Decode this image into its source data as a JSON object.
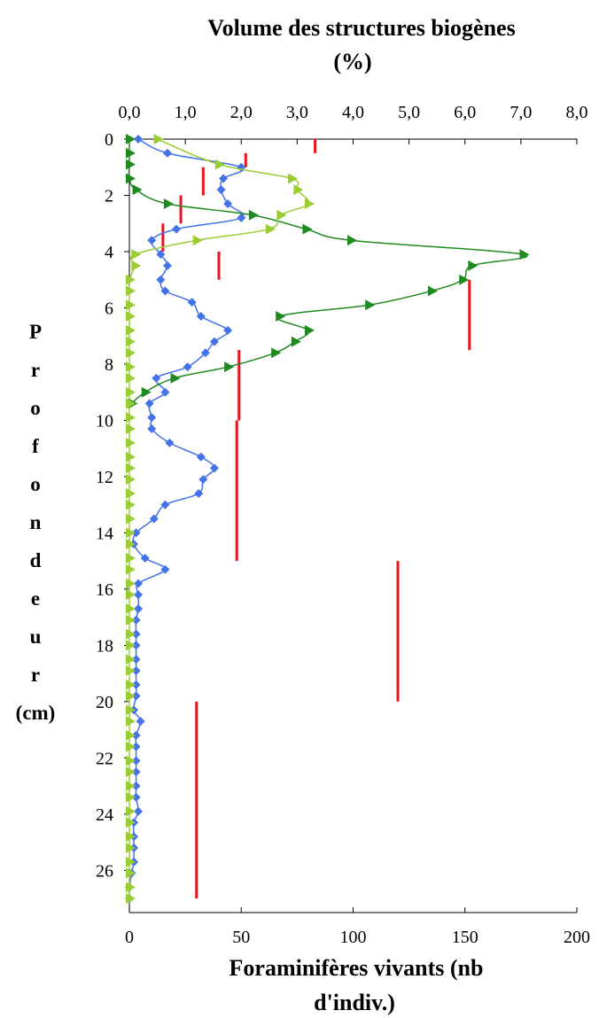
{
  "chart_data": {
    "type": "line",
    "title_top": [
      "Volume des structures biogènes",
      "(%)"
    ],
    "title_bottom": [
      "Foraminifères vivants (nb",
      "d'indiv.)"
    ],
    "ylabel_letters": [
      "P",
      "r",
      "o",
      "f",
      "o",
      "n",
      "d",
      "e",
      "u",
      "r"
    ],
    "ylabel_unit": "(cm)",
    "y_axis": {
      "min": 0,
      "max": 27.5,
      "inverted": true,
      "ticks": [
        0,
        2,
        4,
        6,
        8,
        10,
        12,
        14,
        16,
        18,
        20,
        22,
        24,
        26
      ]
    },
    "top_axis": {
      "min": 0,
      "max": 8,
      "tick_labels": [
        "0,0",
        "1,0",
        "2,0",
        "3,0",
        "4,0",
        "5,0",
        "6,0",
        "7,0",
        "8,0"
      ]
    },
    "bottom_axis": {
      "min": 0,
      "max": 200,
      "tick_labels": [
        "0",
        "50",
        "100",
        "150",
        "200"
      ]
    },
    "grid": false,
    "series": [
      {
        "axis": "bottom",
        "color": "#4472e8",
        "marker": "diamond",
        "points": [
          [
            4,
            0
          ],
          [
            17,
            0.5
          ],
          [
            50,
            1
          ],
          [
            42,
            1.4
          ],
          [
            41,
            1.8
          ],
          [
            44,
            2.3
          ],
          [
            50,
            2.8
          ],
          [
            21,
            3.2
          ],
          [
            10,
            3.6
          ],
          [
            14,
            4.1
          ],
          [
            17,
            4.5
          ],
          [
            14,
            5
          ],
          [
            16,
            5.4
          ],
          [
            28,
            5.8
          ],
          [
            32,
            6.3
          ],
          [
            44,
            6.8
          ],
          [
            38,
            7.2
          ],
          [
            34,
            7.6
          ],
          [
            26,
            8.1
          ],
          [
            12,
            8.5
          ],
          [
            16,
            9
          ],
          [
            9,
            9.4
          ],
          [
            10,
            9.9
          ],
          [
            10,
            10.3
          ],
          [
            18,
            10.8
          ],
          [
            32,
            11.3
          ],
          [
            38,
            11.7
          ],
          [
            33,
            12.1
          ],
          [
            31,
            12.6
          ],
          [
            16,
            13
          ],
          [
            11,
            13.5
          ],
          [
            3,
            14
          ],
          [
            2,
            14.4
          ],
          [
            7,
            14.9
          ],
          [
            16,
            15.3
          ],
          [
            4,
            15.8
          ],
          [
            4,
            16.2
          ],
          [
            4,
            16.7
          ],
          [
            3,
            17.1
          ],
          [
            3,
            17.6
          ],
          [
            3,
            18
          ],
          [
            3,
            18.5
          ],
          [
            3,
            18.9
          ],
          [
            3,
            19.4
          ],
          [
            3,
            19.8
          ],
          [
            2,
            20.3
          ],
          [
            5,
            20.7
          ],
          [
            3,
            21.2
          ],
          [
            3,
            21.6
          ],
          [
            3,
            22.1
          ],
          [
            3,
            22.5
          ],
          [
            3,
            23
          ],
          [
            3,
            23.4
          ],
          [
            4,
            23.9
          ],
          [
            2,
            24.3
          ],
          [
            2,
            24.8
          ],
          [
            2,
            25.2
          ],
          [
            2,
            25.7
          ],
          [
            1,
            26.1
          ],
          [
            0,
            26.6
          ],
          [
            0,
            27
          ]
        ]
      },
      {
        "axis": "bottom",
        "color": "#1f8a1f",
        "marker": "triangle-right",
        "points": [
          [
            0,
            0
          ],
          [
            0,
            0.5
          ],
          [
            0,
            0.9
          ],
          [
            0,
            1.4
          ],
          [
            3,
            1.8
          ],
          [
            17,
            2.3
          ],
          [
            55,
            2.7
          ],
          [
            79,
            3.2
          ],
          [
            99,
            3.6
          ],
          [
            176,
            4.1
          ],
          [
            153,
            4.5
          ],
          [
            149,
            5
          ],
          [
            135,
            5.4
          ],
          [
            107,
            5.9
          ],
          [
            67,
            6.3
          ],
          [
            80,
            6.8
          ],
          [
            74,
            7.2
          ],
          [
            65,
            7.6
          ],
          [
            44,
            8.1
          ],
          [
            20,
            8.5
          ],
          [
            7,
            9
          ],
          [
            1,
            9.4
          ]
        ]
      },
      {
        "axis": "top",
        "color": "#9acd32",
        "marker": "triangle-right",
        "points": [
          [
            0.5,
            0
          ],
          [
            1.6,
            0.9
          ],
          [
            2.9,
            1.4
          ],
          [
            3.0,
            1.8
          ],
          [
            3.2,
            2.3
          ],
          [
            2.7,
            2.7
          ],
          [
            2.5,
            3.2
          ],
          [
            1.2,
            3.6
          ],
          [
            0.1,
            4.1
          ],
          [
            0.1,
            4.5
          ],
          [
            0,
            5
          ],
          [
            0,
            5.4
          ],
          [
            0,
            5.9
          ],
          [
            0,
            6.3
          ],
          [
            0,
            6.8
          ],
          [
            0,
            7.2
          ],
          [
            0,
            7.6
          ],
          [
            0,
            8.1
          ],
          [
            0,
            8.5
          ],
          [
            0,
            9
          ],
          [
            0,
            9.4
          ],
          [
            0,
            9.9
          ],
          [
            0,
            10.3
          ],
          [
            0,
            10.8
          ],
          [
            0,
            11.3
          ],
          [
            0,
            11.7
          ],
          [
            0,
            12.1
          ],
          [
            0,
            12.6
          ],
          [
            0,
            13
          ],
          [
            0,
            13.5
          ],
          [
            0,
            14
          ],
          [
            0,
            14.4
          ],
          [
            0,
            14.9
          ],
          [
            0,
            15.3
          ],
          [
            0,
            15.8
          ],
          [
            0,
            16.2
          ],
          [
            0,
            16.7
          ],
          [
            0,
            17.1
          ],
          [
            0,
            17.6
          ],
          [
            0,
            18
          ],
          [
            0,
            18.5
          ],
          [
            0,
            18.9
          ],
          [
            0,
            19.4
          ],
          [
            0,
            19.8
          ],
          [
            0,
            20.3
          ],
          [
            0,
            20.7
          ],
          [
            0,
            21.2
          ],
          [
            0,
            21.6
          ],
          [
            0,
            22.1
          ],
          [
            0,
            22.5
          ],
          [
            0,
            23
          ],
          [
            0,
            23.4
          ],
          [
            0,
            23.9
          ],
          [
            0,
            24.3
          ],
          [
            0,
            24.8
          ],
          [
            0,
            25.2
          ],
          [
            0,
            25.7
          ],
          [
            0,
            26.1
          ],
          [
            0,
            26.6
          ],
          [
            0,
            27
          ]
        ]
      }
    ],
    "red_segments": {
      "axis": "bottom",
      "color": "#e8141e",
      "segments": [
        {
          "x": 83,
          "y1": 0,
          "y2": 0.5
        },
        {
          "x": 52,
          "y1": 0.5,
          "y2": 1
        },
        {
          "x": 33,
          "y1": 1,
          "y2": 2
        },
        {
          "x": 23,
          "y1": 2,
          "y2": 3
        },
        {
          "x": 15,
          "y1": 3,
          "y2": 4
        },
        {
          "x": 40,
          "y1": 4,
          "y2": 5
        },
        {
          "x": 152,
          "y1": 5,
          "y2": 7.5
        },
        {
          "x": 49,
          "y1": 7.5,
          "y2": 10
        },
        {
          "x": 48,
          "y1": 10,
          "y2": 15
        },
        {
          "x": 120,
          "y1": 15,
          "y2": 20
        },
        {
          "x": 30,
          "y1": 20,
          "y2": 27
        }
      ]
    }
  }
}
